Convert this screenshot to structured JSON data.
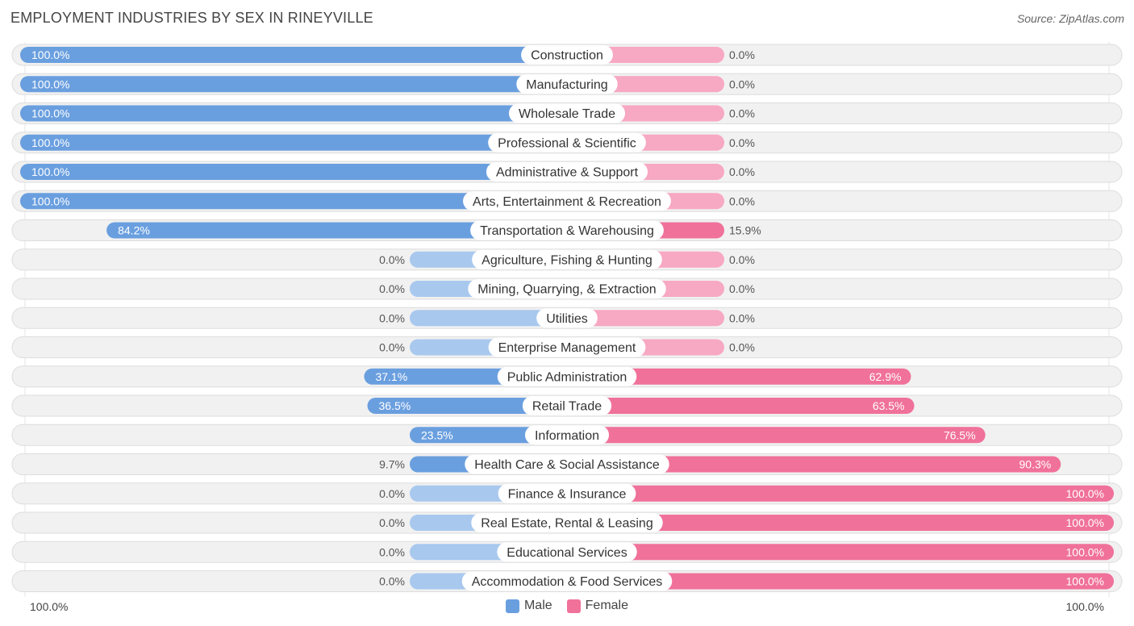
{
  "header": {
    "title": "EMPLOYMENT INDUSTRIES BY SEX IN RINEYVILLE",
    "source": "Source: ZipAtlas.com"
  },
  "colors": {
    "male": "#6a9fdf",
    "male_light": "#a8c8ee",
    "female": "#f0719a",
    "female_light": "#f7a8c2",
    "row_bg": "#f1f1f1",
    "row_border": "#dddddd"
  },
  "legend": {
    "male_label": "Male",
    "female_label": "Female"
  },
  "axis": {
    "left_label": "100.0%",
    "right_label": "100.0%"
  },
  "chart_data": {
    "type": "bar",
    "orientation": "horizontal-diverging",
    "title": "EMPLOYMENT INDUSTRIES BY SEX IN RINEYVILLE",
    "xlim": [
      -100,
      100
    ],
    "categories": [
      "Construction",
      "Manufacturing",
      "Wholesale Trade",
      "Professional & Scientific",
      "Administrative & Support",
      "Arts, Entertainment & Recreation",
      "Transportation & Warehousing",
      "Agriculture, Fishing & Hunting",
      "Mining, Quarrying, & Extraction",
      "Utilities",
      "Enterprise Management",
      "Public Administration",
      "Retail Trade",
      "Information",
      "Health Care & Social Assistance",
      "Finance & Insurance",
      "Real Estate, Rental & Leasing",
      "Educational Services",
      "Accommodation & Food Services"
    ],
    "series": [
      {
        "name": "Male",
        "values": [
          100.0,
          100.0,
          100.0,
          100.0,
          100.0,
          100.0,
          84.2,
          0.0,
          0.0,
          0.0,
          0.0,
          37.1,
          36.5,
          23.5,
          9.7,
          0.0,
          0.0,
          0.0,
          0.0
        ],
        "labels": [
          "100.0%",
          "100.0%",
          "100.0%",
          "100.0%",
          "100.0%",
          "100.0%",
          "84.2%",
          "0.0%",
          "0.0%",
          "0.0%",
          "0.0%",
          "37.1%",
          "36.5%",
          "23.5%",
          "9.7%",
          "0.0%",
          "0.0%",
          "0.0%",
          "0.0%"
        ]
      },
      {
        "name": "Female",
        "values": [
          0.0,
          0.0,
          0.0,
          0.0,
          0.0,
          0.0,
          15.9,
          0.0,
          0.0,
          0.0,
          0.0,
          62.9,
          63.5,
          76.5,
          90.3,
          100.0,
          100.0,
          100.0,
          100.0
        ],
        "labels": [
          "0.0%",
          "0.0%",
          "0.0%",
          "0.0%",
          "0.0%",
          "0.0%",
          "15.9%",
          "0.0%",
          "0.0%",
          "0.0%",
          "0.0%",
          "62.9%",
          "63.5%",
          "76.5%",
          "90.3%",
          "100.0%",
          "100.0%",
          "100.0%",
          "100.0%"
        ]
      }
    ],
    "legend_position": "bottom-center"
  }
}
